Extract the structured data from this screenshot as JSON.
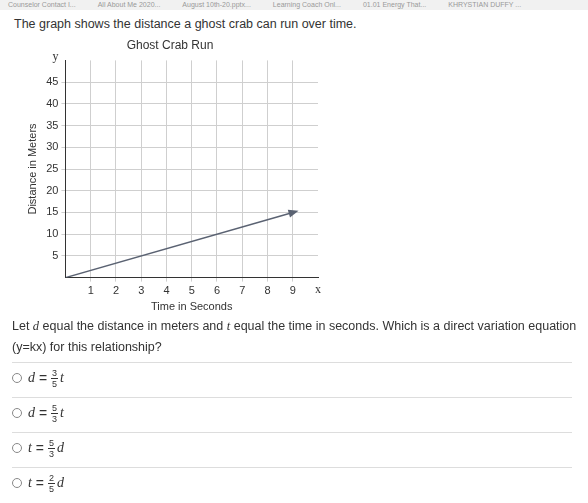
{
  "bookmarks": [
    "Counselor Contact I...",
    "All About Me 2020...",
    "August 10th-20.pptx...",
    "Learning Coach Onl...",
    "01.01 Energy That...",
    "KHRYSTIAN DUFFY ..."
  ],
  "intro": "The graph shows the distance a ghost crab can run over time.",
  "chart_data": {
    "type": "line",
    "title": "Ghost Crab Run",
    "x_label": "Time in Seconds",
    "y_label": "Distance in Meters",
    "x_axis_letter": "x",
    "y_axis_letter": "y",
    "x": [
      0,
      9
    ],
    "values": [
      0,
      15
    ],
    "color": "#5a6272",
    "xlim": [
      0,
      10
    ],
    "xticks": [
      1,
      2,
      3,
      4,
      5,
      6,
      7,
      8,
      9
    ],
    "ylim": [
      0,
      50
    ],
    "yticks": [
      5,
      10,
      15,
      20,
      25,
      30,
      35,
      40,
      45
    ],
    "grid": true
  },
  "question": {
    "parts": [
      "Let ",
      "d",
      " equal the distance in meters and ",
      "t",
      " equal the time in seconds. Which is a direct variation equation (y=kx) for this relationship?"
    ]
  },
  "options": [
    {
      "lhs": "d",
      "eq": "=",
      "num": "3",
      "den": "5",
      "var": "t"
    },
    {
      "lhs": "d",
      "eq": "=",
      "num": "5",
      "den": "3",
      "var": "t"
    },
    {
      "lhs": "t",
      "eq": "=",
      "num": "5",
      "den": "3",
      "var": "d"
    },
    {
      "lhs": "t",
      "eq": "=",
      "num": "2",
      "den": "5",
      "var": "d"
    }
  ]
}
